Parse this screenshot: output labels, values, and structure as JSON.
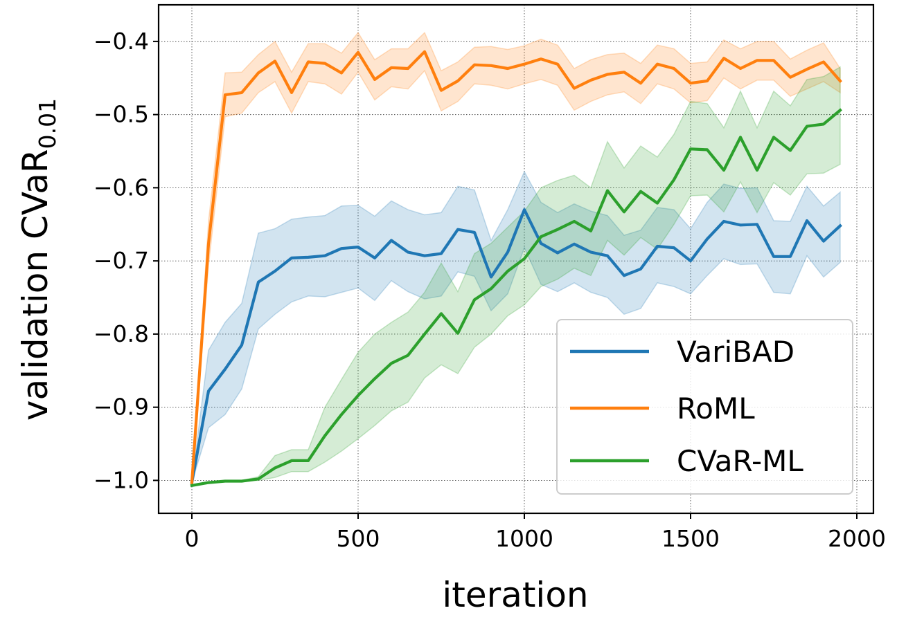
{
  "chart_data": {
    "type": "line",
    "title": "",
    "xlabel": "iteration",
    "ylabel": {
      "main": "validation CVaR",
      "subscript": "0.01"
    },
    "xlim": [
      -100,
      2050
    ],
    "ylim": [
      -1.045,
      -0.35
    ],
    "xticks": [
      0,
      500,
      1000,
      1500,
      2000
    ],
    "yticks": [
      -1.0,
      -0.9,
      -0.8,
      -0.7,
      -0.6,
      -0.5,
      -0.4
    ],
    "xtick_labels": [
      "0",
      "500",
      "1000",
      "1500",
      "2000"
    ],
    "ytick_labels": [
      "−1.0",
      "−0.9",
      "−0.8",
      "−0.7",
      "−0.6",
      "−0.5",
      "−0.4"
    ],
    "grid": true,
    "legend_position": "lower-right",
    "x": [
      0,
      50,
      100,
      150,
      200,
      250,
      300,
      350,
      400,
      450,
      500,
      550,
      600,
      650,
      700,
      750,
      800,
      850,
      900,
      950,
      1000,
      1050,
      1100,
      1150,
      1200,
      1250,
      1300,
      1350,
      1400,
      1450,
      1500,
      1550,
      1600,
      1650,
      1700,
      1750,
      1800,
      1850,
      1900,
      1950
    ],
    "series": [
      {
        "name": "VariBAD",
        "color": "#1f77b4",
        "values": [
          -1.003,
          -0.878,
          -0.848,
          -0.815,
          -0.729,
          -0.714,
          -0.696,
          -0.695,
          -0.693,
          -0.683,
          -0.681,
          -0.696,
          -0.672,
          -0.688,
          -0.693,
          -0.69,
          -0.657,
          -0.661,
          -0.722,
          -0.688,
          -0.63,
          -0.676,
          -0.689,
          -0.677,
          -0.688,
          -0.693,
          -0.72,
          -0.711,
          -0.68,
          -0.682,
          -0.7,
          -0.67,
          -0.646,
          -0.651,
          -0.65,
          -0.694,
          -0.694,
          -0.645,
          -0.673,
          -0.652
        ],
        "lower": [
          -1.003,
          -0.928,
          -0.91,
          -0.875,
          -0.793,
          -0.773,
          -0.756,
          -0.748,
          -0.749,
          -0.743,
          -0.737,
          -0.754,
          -0.727,
          -0.742,
          -0.752,
          -0.748,
          -0.715,
          -0.721,
          -0.768,
          -0.745,
          -0.682,
          -0.732,
          -0.742,
          -0.73,
          -0.743,
          -0.75,
          -0.773,
          -0.765,
          -0.73,
          -0.735,
          -0.745,
          -0.72,
          -0.697,
          -0.705,
          -0.704,
          -0.743,
          -0.745,
          -0.693,
          -0.722,
          -0.702
        ],
        "upper": [
          -1.003,
          -0.822,
          -0.784,
          -0.758,
          -0.662,
          -0.656,
          -0.643,
          -0.64,
          -0.638,
          -0.625,
          -0.624,
          -0.639,
          -0.618,
          -0.63,
          -0.637,
          -0.634,
          -0.598,
          -0.603,
          -0.672,
          -0.63,
          -0.578,
          -0.62,
          -0.634,
          -0.622,
          -0.632,
          -0.638,
          -0.665,
          -0.658,
          -0.627,
          -0.63,
          -0.656,
          -0.62,
          -0.595,
          -0.601,
          -0.6,
          -0.645,
          -0.646,
          -0.598,
          -0.625,
          -0.606
        ]
      },
      {
        "name": "RoML",
        "color": "#ff7f0e",
        "values": [
          -1.003,
          -0.677,
          -0.473,
          -0.47,
          -0.443,
          -0.427,
          -0.47,
          -0.428,
          -0.43,
          -0.443,
          -0.415,
          -0.452,
          -0.436,
          -0.437,
          -0.414,
          -0.467,
          -0.454,
          -0.432,
          -0.433,
          -0.437,
          -0.431,
          -0.424,
          -0.431,
          -0.464,
          -0.453,
          -0.445,
          -0.442,
          -0.457,
          -0.431,
          -0.437,
          -0.457,
          -0.454,
          -0.423,
          -0.437,
          -0.426,
          -0.426,
          -0.449,
          -0.438,
          -0.428,
          -0.454
        ],
        "lower": [
          -1.003,
          -0.707,
          -0.503,
          -0.498,
          -0.47,
          -0.455,
          -0.498,
          -0.455,
          -0.458,
          -0.472,
          -0.442,
          -0.48,
          -0.462,
          -0.465,
          -0.44,
          -0.495,
          -0.482,
          -0.458,
          -0.46,
          -0.465,
          -0.458,
          -0.452,
          -0.46,
          -0.494,
          -0.482,
          -0.473,
          -0.469,
          -0.485,
          -0.458,
          -0.465,
          -0.484,
          -0.481,
          -0.45,
          -0.465,
          -0.453,
          -0.453,
          -0.475,
          -0.465,
          -0.455,
          -0.47
        ],
        "upper": [
          -1.003,
          -0.646,
          -0.443,
          -0.442,
          -0.418,
          -0.4,
          -0.442,
          -0.403,
          -0.403,
          -0.416,
          -0.388,
          -0.425,
          -0.41,
          -0.41,
          -0.388,
          -0.44,
          -0.428,
          -0.408,
          -0.407,
          -0.411,
          -0.406,
          -0.397,
          -0.405,
          -0.437,
          -0.425,
          -0.418,
          -0.416,
          -0.43,
          -0.405,
          -0.41,
          -0.43,
          -0.428,
          -0.398,
          -0.41,
          -0.4,
          -0.4,
          -0.424,
          -0.412,
          -0.402,
          -0.437
        ]
      },
      {
        "name": "CVaR-ML",
        "color": "#2ca02c",
        "values": [
          -1.007,
          -1.003,
          -1.001,
          -1.001,
          -0.998,
          -0.983,
          -0.973,
          -0.973,
          -0.939,
          -0.91,
          -0.884,
          -0.861,
          -0.84,
          -0.829,
          -0.8,
          -0.772,
          -0.799,
          -0.753,
          -0.738,
          -0.714,
          -0.697,
          -0.667,
          -0.657,
          -0.646,
          -0.659,
          -0.604,
          -0.633,
          -0.605,
          -0.621,
          -0.589,
          -0.547,
          -0.548,
          -0.576,
          -0.531,
          -0.576,
          -0.531,
          -0.549,
          -0.516,
          -0.513,
          -0.494
        ],
        "lower": [
          -1.007,
          -1.004,
          -1.002,
          -1.002,
          -1.0,
          -0.996,
          -0.988,
          -0.988,
          -0.975,
          -0.96,
          -0.943,
          -0.925,
          -0.905,
          -0.893,
          -0.86,
          -0.842,
          -0.854,
          -0.818,
          -0.8,
          -0.775,
          -0.76,
          -0.735,
          -0.725,
          -0.71,
          -0.72,
          -0.672,
          -0.692,
          -0.668,
          -0.684,
          -0.65,
          -0.611,
          -0.61,
          -0.633,
          -0.592,
          -0.634,
          -0.593,
          -0.61,
          -0.581,
          -0.58,
          -0.568
        ],
        "upper": [
          -1.007,
          -1.002,
          -1.0,
          -1.0,
          -0.995,
          -0.966,
          -0.958,
          -0.958,
          -0.9,
          -0.862,
          -0.825,
          -0.8,
          -0.784,
          -0.77,
          -0.743,
          -0.703,
          -0.742,
          -0.69,
          -0.676,
          -0.654,
          -0.632,
          -0.6,
          -0.59,
          -0.583,
          -0.6,
          -0.537,
          -0.573,
          -0.543,
          -0.558,
          -0.527,
          -0.482,
          -0.485,
          -0.518,
          -0.468,
          -0.518,
          -0.468,
          -0.488,
          -0.452,
          -0.448,
          -0.435
        ]
      }
    ]
  }
}
